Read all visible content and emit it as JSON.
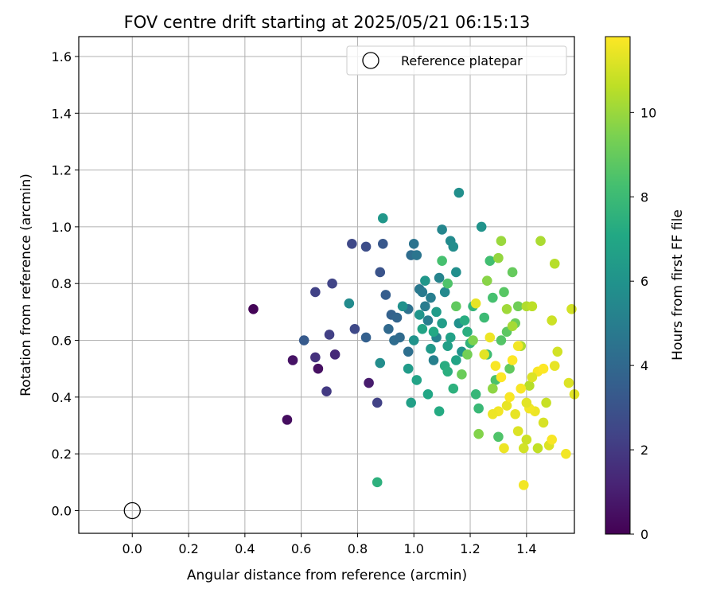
{
  "chart_data": {
    "type": "scatter",
    "title": "FOV centre drift starting at 2025/05/21 06:15:13",
    "xlabel": "Angular distance from reference (arcmin)",
    "ylabel": "Rotation from reference (arcmin)",
    "xlim": [
      -0.19,
      1.57
    ],
    "ylim": [
      -0.08,
      1.67
    ],
    "xticks": [
      0.0,
      0.2,
      0.4,
      0.6,
      0.8,
      1.0,
      1.2,
      1.4
    ],
    "xtick_labels": [
      "0.0",
      "0.2",
      "0.4",
      "0.6",
      "0.8",
      "1.0",
      "1.2",
      "1.4"
    ],
    "yticks": [
      0.0,
      0.2,
      0.4,
      0.6,
      0.8,
      1.0,
      1.2,
      1.4,
      1.6
    ],
    "ytick_labels": [
      "0.0",
      "0.2",
      "0.4",
      "0.6",
      "0.8",
      "1.0",
      "1.2",
      "1.4",
      "1.6"
    ],
    "grid": true,
    "legend": {
      "position": "upper right",
      "entries": [
        "Reference platepar"
      ]
    },
    "reference_point": {
      "x": 0.0,
      "y": 0.0
    },
    "colorbar": {
      "label": "Hours from first FF file",
      "colormap": "viridis",
      "range": [
        0,
        11.8
      ],
      "ticks": [
        0,
        2,
        4,
        6,
        8,
        10
      ],
      "tick_labels": [
        "0",
        "2",
        "4",
        "6",
        "8",
        "10"
      ]
    },
    "points": [
      [
        0.43,
        0.71,
        0.1
      ],
      [
        0.55,
        0.32,
        0.4
      ],
      [
        0.57,
        0.53,
        0.6
      ],
      [
        0.66,
        0.5,
        0.5
      ],
      [
        0.84,
        0.45,
        0.9
      ],
      [
        0.72,
        0.55,
        1.4
      ],
      [
        0.65,
        0.54,
        1.7
      ],
      [
        0.69,
        0.42,
        2.0
      ],
      [
        0.7,
        0.62,
        2.2
      ],
      [
        0.87,
        0.38,
        2.3
      ],
      [
        0.65,
        0.77,
        2.3
      ],
      [
        0.71,
        0.8,
        2.4
      ],
      [
        0.78,
        0.94,
        2.6
      ],
      [
        0.79,
        0.64,
        2.6
      ],
      [
        0.83,
        0.93,
        2.8
      ],
      [
        0.88,
        0.84,
        3.0
      ],
      [
        0.89,
        0.94,
        3.2
      ],
      [
        0.61,
        0.6,
        3.3
      ],
      [
        0.83,
        0.61,
        3.6
      ],
      [
        0.9,
        0.76,
        3.5
      ],
      [
        0.92,
        0.69,
        3.7
      ],
      [
        0.94,
        0.68,
        3.8
      ],
      [
        0.91,
        0.64,
        4.0
      ],
      [
        0.93,
        0.6,
        4.2
      ],
      [
        0.95,
        0.61,
        4.1
      ],
      [
        0.98,
        0.56,
        4.3
      ],
      [
        0.98,
        0.71,
        4.4
      ],
      [
        0.99,
        0.9,
        4.2
      ],
      [
        1.0,
        0.94,
        4.5
      ],
      [
        1.01,
        0.9,
        4.6
      ],
      [
        1.02,
        0.78,
        4.7
      ],
      [
        1.03,
        0.77,
        4.8
      ],
      [
        1.04,
        0.72,
        4.9
      ],
      [
        1.05,
        0.67,
        5.0
      ],
      [
        1.06,
        0.75,
        5.0
      ],
      [
        1.07,
        0.53,
        5.1
      ],
      [
        1.08,
        0.61,
        5.2
      ],
      [
        1.09,
        0.82,
        5.3
      ],
      [
        1.1,
        0.99,
        5.4
      ],
      [
        1.11,
        0.77,
        5.5
      ],
      [
        1.13,
        0.95,
        5.6
      ],
      [
        1.14,
        0.93,
        5.7
      ],
      [
        1.15,
        0.84,
        5.8
      ],
      [
        1.16,
        0.66,
        5.9
      ],
      [
        1.17,
        0.56,
        6.0
      ],
      [
        0.96,
        0.72,
        5.9
      ],
      [
        1.0,
        0.6,
        6.0
      ],
      [
        1.02,
        0.69,
        6.1
      ],
      [
        1.04,
        0.81,
        6.2
      ],
      [
        1.06,
        0.57,
        6.3
      ],
      [
        1.08,
        0.7,
        6.4
      ],
      [
        1.1,
        0.66,
        6.5
      ],
      [
        1.12,
        0.58,
        6.6
      ],
      [
        1.13,
        0.61,
        6.7
      ],
      [
        1.15,
        0.53,
        6.8
      ],
      [
        0.77,
        0.73,
        5.6
      ],
      [
        0.88,
        0.52,
        5.7
      ],
      [
        0.89,
        1.03,
        6.2
      ],
      [
        0.98,
        0.5,
        6.4
      ],
      [
        0.99,
        0.38,
        6.6
      ],
      [
        1.01,
        0.46,
        6.8
      ],
      [
        1.03,
        0.64,
        6.9
      ],
      [
        1.05,
        0.41,
        7.0
      ],
      [
        1.07,
        0.63,
        7.1
      ],
      [
        1.09,
        0.35,
        7.2
      ],
      [
        1.11,
        0.51,
        7.3
      ],
      [
        1.12,
        0.49,
        7.4
      ],
      [
        1.14,
        0.43,
        7.5
      ],
      [
        1.16,
        1.12,
        5.8
      ],
      [
        1.24,
        1.0,
        6.0
      ],
      [
        0.87,
        0.1,
        7.5
      ],
      [
        1.18,
        0.67,
        7.3
      ],
      [
        1.19,
        0.63,
        7.4
      ],
      [
        1.2,
        0.59,
        7.6
      ],
      [
        1.21,
        0.72,
        7.7
      ],
      [
        1.22,
        0.41,
        7.8
      ],
      [
        1.23,
        0.36,
        7.9
      ],
      [
        1.25,
        0.68,
        8.0
      ],
      [
        1.26,
        0.55,
        8.1
      ],
      [
        1.27,
        0.88,
        8.2
      ],
      [
        1.28,
        0.75,
        8.3
      ],
      [
        1.29,
        0.46,
        8.4
      ],
      [
        1.3,
        0.26,
        8.5
      ],
      [
        1.31,
        0.6,
        8.6
      ],
      [
        1.32,
        0.77,
        8.7
      ],
      [
        1.33,
        0.63,
        8.8
      ],
      [
        1.34,
        0.5,
        8.9
      ],
      [
        1.35,
        0.84,
        9.0
      ],
      [
        1.36,
        0.66,
        9.1
      ],
      [
        1.37,
        0.72,
        9.2
      ],
      [
        1.1,
        0.88,
        8.3
      ],
      [
        1.12,
        0.8,
        8.5
      ],
      [
        1.15,
        0.72,
        8.9
      ],
      [
        1.17,
        0.48,
        9.1
      ],
      [
        1.19,
        0.55,
        9.3
      ],
      [
        1.21,
        0.6,
        9.5
      ],
      [
        1.23,
        0.27,
        9.6
      ],
      [
        1.26,
        0.81,
        9.7
      ],
      [
        1.28,
        0.43,
        9.8
      ],
      [
        1.3,
        0.89,
        9.9
      ],
      [
        1.31,
        0.95,
        10.0
      ],
      [
        1.33,
        0.71,
        10.1
      ],
      [
        1.35,
        0.65,
        10.2
      ],
      [
        1.38,
        0.58,
        10.3
      ],
      [
        1.4,
        0.72,
        10.4
      ],
      [
        1.41,
        0.44,
        10.5
      ],
      [
        1.42,
        0.72,
        10.6
      ],
      [
        1.44,
        0.22,
        10.7
      ],
      [
        1.45,
        0.95,
        10.3
      ],
      [
        1.47,
        0.38,
        10.8
      ],
      [
        1.49,
        0.67,
        10.9
      ],
      [
        1.5,
        0.87,
        10.5
      ],
      [
        1.51,
        0.56,
        11.0
      ],
      [
        1.55,
        0.45,
        11.2
      ],
      [
        1.56,
        0.71,
        11.0
      ],
      [
        1.57,
        0.41,
        11.3
      ],
      [
        1.46,
        0.31,
        11.1
      ],
      [
        1.48,
        0.23,
        11.2
      ],
      [
        1.5,
        0.51,
        11.4
      ],
      [
        1.43,
        0.35,
        11.5
      ],
      [
        1.39,
        0.22,
        11.0
      ],
      [
        1.4,
        0.25,
        10.9
      ],
      [
        1.37,
        0.28,
        11.2
      ],
      [
        1.36,
        0.34,
        11.4
      ],
      [
        1.41,
        0.36,
        11.6
      ],
      [
        1.44,
        0.49,
        11.7
      ],
      [
        1.46,
        0.5,
        11.8
      ],
      [
        1.49,
        0.25,
        11.7
      ],
      [
        1.54,
        0.2,
        11.6
      ],
      [
        1.32,
        0.22,
        11.5
      ],
      [
        1.33,
        0.37,
        11.4
      ],
      [
        1.3,
        0.35,
        11.6
      ],
      [
        1.28,
        0.34,
        11.5
      ],
      [
        1.29,
        0.51,
        11.7
      ],
      [
        1.31,
        0.47,
        11.8
      ],
      [
        1.34,
        0.4,
        11.7
      ],
      [
        1.35,
        0.53,
        11.8
      ],
      [
        1.37,
        0.58,
        11.6
      ],
      [
        1.38,
        0.43,
        11.7
      ],
      [
        1.39,
        0.09,
        11.6
      ],
      [
        1.22,
        0.73,
        11.4
      ],
      [
        1.25,
        0.55,
        11.3
      ],
      [
        1.27,
        0.61,
        11.5
      ],
      [
        1.4,
        0.38,
        11.3
      ],
      [
        1.42,
        0.47,
        11.2
      ]
    ]
  }
}
